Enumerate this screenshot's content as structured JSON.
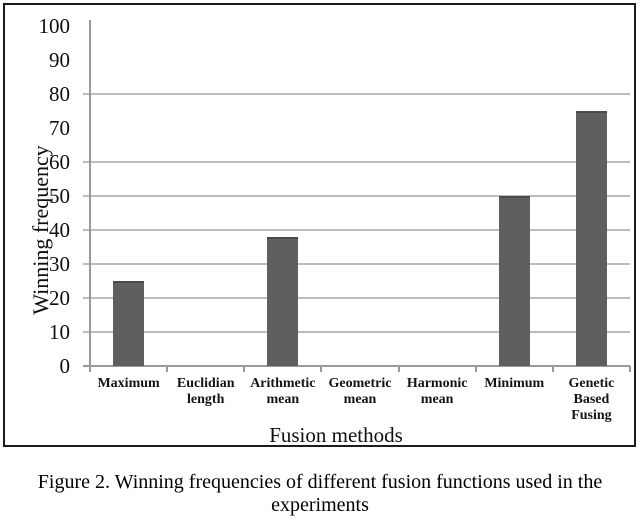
{
  "figure": {
    "caption_line1": "Figure 2. Winning frequencies of different fusion functions used in the",
    "caption_line2": "experiments"
  },
  "chart_data": {
    "type": "bar",
    "title": "",
    "categories": [
      "Maximum",
      "Euclidian length",
      "Arithmetic mean",
      "Geometric mean",
      "Harmonic mean",
      "Minimum",
      "Genetic Based Fusing"
    ],
    "category_label_lines": [
      [
        "Maximum"
      ],
      [
        "Euclidian",
        "length"
      ],
      [
        "Arithmetic",
        "mean"
      ],
      [
        "Geometric",
        "mean"
      ],
      [
        "Harmonic",
        "mean"
      ],
      [
        "Minimum"
      ],
      [
        "Genetic",
        "Based",
        "Fusing"
      ]
    ],
    "values": [
      25,
      0,
      38,
      0,
      0,
      50,
      75
    ],
    "xlabel": "Fusion methods",
    "ylabel": "Winning frequency",
    "ylim": [
      0,
      100
    ],
    "yticks": [
      0,
      10,
      20,
      30,
      40,
      50,
      60,
      70,
      80,
      90,
      100
    ],
    "gridline_values": [
      10,
      20,
      30,
      40,
      50,
      60,
      80
    ],
    "grid": "horizontal",
    "legend_position": "none",
    "bar_color": "#5f5f5f",
    "bar_top_color": "#4a4a4a",
    "gridline_color": "#bcbcbc",
    "axis_color": "#9a9a9a",
    "frame_border_color": "#1c1c1c",
    "text_color": "#0f0f0f"
  }
}
